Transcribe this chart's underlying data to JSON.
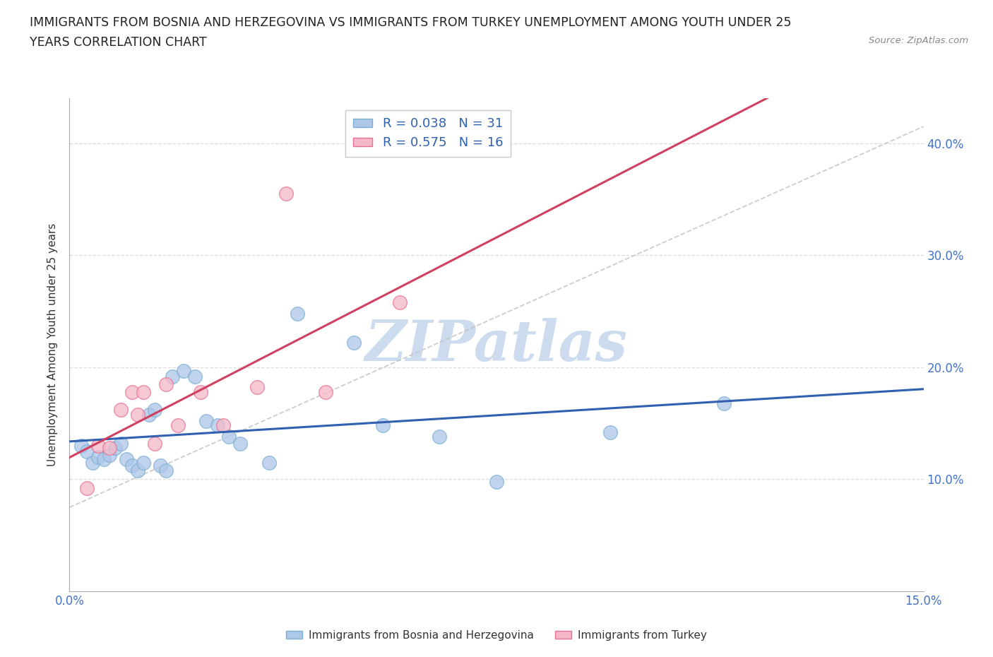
{
  "title_line1": "IMMIGRANTS FROM BOSNIA AND HERZEGOVINA VS IMMIGRANTS FROM TURKEY UNEMPLOYMENT AMONG YOUTH UNDER 25",
  "title_line2": "YEARS CORRELATION CHART",
  "source": "Source: ZipAtlas.com",
  "ylabel": "Unemployment Among Youth under 25 years",
  "xlim": [
    0.0,
    0.15
  ],
  "ylim": [
    0.0,
    0.44
  ],
  "xticks": [
    0.0,
    0.05,
    0.1,
    0.15
  ],
  "yticks_left": [
    0.1,
    0.2,
    0.3,
    0.4
  ],
  "yticks_right": [
    0.1,
    0.2,
    0.3,
    0.4
  ],
  "xticklabels": [
    "0.0%",
    "",
    "",
    "15.0%"
  ],
  "yticklabels_left": [
    "10.0%",
    "20.0%",
    "30.0%",
    "40.0%"
  ],
  "yticklabels_right": [
    "10.0%",
    "20.0%",
    "30.0%",
    "40.0%"
  ],
  "bosnia_color": "#aec6e8",
  "turkey_color": "#f5b8c8",
  "bosnia_edge": "#7aafd4",
  "turkey_edge": "#e87090",
  "bosnia_line_color": "#3060b0",
  "turkey_line_color": "#d04060",
  "diag_line_color": "#c0c0c0",
  "R_bosnia": 0.038,
  "N_bosnia": 31,
  "R_turkey": 0.575,
  "N_turkey": 16,
  "legend_label_bosnia": "Immigrants from Bosnia and Herzegovina",
  "legend_label_turkey": "Immigrants from Turkey",
  "watermark": "ZIPatlas",
  "watermark_color": "#ccdcee",
  "bosnia_x": [
    0.002,
    0.003,
    0.004,
    0.005,
    0.006,
    0.007,
    0.008,
    0.009,
    0.01,
    0.011,
    0.012,
    0.013,
    0.014,
    0.015,
    0.016,
    0.017,
    0.018,
    0.02,
    0.022,
    0.024,
    0.026,
    0.028,
    0.03,
    0.035,
    0.04,
    0.05,
    0.055,
    0.065,
    0.075,
    0.095,
    0.115
  ],
  "bosnia_y": [
    0.13,
    0.125,
    0.115,
    0.12,
    0.118,
    0.122,
    0.128,
    0.132,
    0.118,
    0.112,
    0.108,
    0.115,
    0.158,
    0.162,
    0.112,
    0.108,
    0.192,
    0.197,
    0.192,
    0.152,
    0.148,
    0.138,
    0.132,
    0.115,
    0.248,
    0.222,
    0.148,
    0.138,
    0.098,
    0.142,
    0.168
  ],
  "turkey_x": [
    0.003,
    0.005,
    0.007,
    0.009,
    0.011,
    0.012,
    0.013,
    0.015,
    0.017,
    0.019,
    0.023,
    0.027,
    0.033,
    0.038,
    0.045,
    0.058
  ],
  "turkey_y": [
    0.092,
    0.13,
    0.128,
    0.162,
    0.178,
    0.158,
    0.178,
    0.132,
    0.185,
    0.148,
    0.178,
    0.148,
    0.182,
    0.355,
    0.178,
    0.258
  ],
  "background_color": "#ffffff",
  "grid_color": "#d8d8d8",
  "tick_color": "#4472c4",
  "label_color": "#333333"
}
